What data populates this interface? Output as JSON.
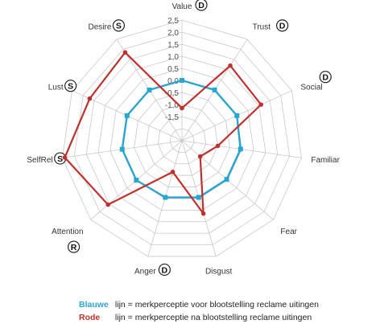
{
  "chart_data": {
    "type": "radar",
    "axes": [
      "Value",
      "Trust",
      "Social",
      "Familiar",
      "Fear",
      "Disgust",
      "Anger",
      "Attention",
      "SelfRel",
      "Lust",
      "Desire"
    ],
    "axis_badges": [
      "D",
      "D",
      "D",
      "",
      "",
      "",
      "D",
      "R",
      "S",
      "S",
      "S"
    ],
    "rlim": [
      -2.5,
      2.5
    ],
    "tick_labels": [
      "-1,5",
      "-1,0",
      "-0,5",
      "0,0",
      "0,5",
      "1,0",
      "1,5",
      "2,0",
      "2,5"
    ],
    "tick_values": [
      -1.5,
      -1.0,
      -0.5,
      0.0,
      0.5,
      1.0,
      1.5,
      2.0,
      2.5
    ],
    "series": [
      {
        "name": "Blauwe",
        "color": "#2aa5cf",
        "values": [
          0.0,
          0.0,
          0.0,
          -0.05,
          -0.05,
          -0.05,
          -0.05,
          0.0,
          0.0,
          0.0,
          0.0
        ]
      },
      {
        "name": "Rode",
        "color": "#c0302c",
        "values": [
          -1.15,
          1.2,
          1.1,
          -1.0,
          -1.5,
          0.65,
          -1.15,
          1.55,
          2.4,
          1.7,
          1.85
        ]
      }
    ]
  },
  "legend": {
    "blue_key": "Blauwe",
    "blue_text": "lijn = merkperceptie voor blootstelling reclame uitingen",
    "red_key": "Rode",
    "red_text": "lijn = merkperceptie na blootstelling reclame uitingen"
  }
}
